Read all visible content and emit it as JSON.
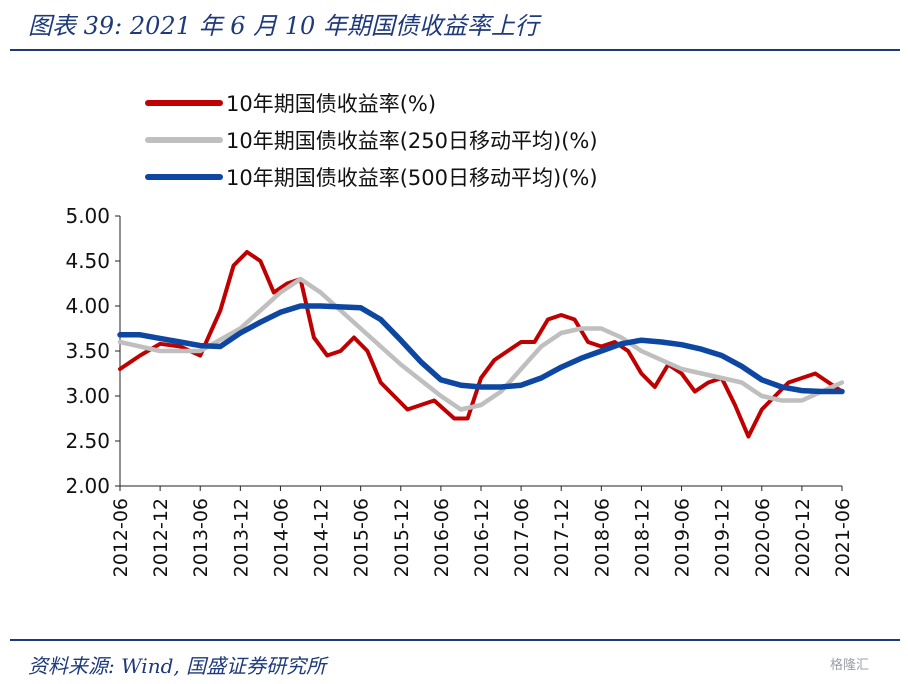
{
  "header": {
    "title": "图表 39:  2021 年 6 月 10 年期国债收益率上行"
  },
  "footer": {
    "source": "资料来源:  Wind,  国盛证券研究所",
    "watermark": "格隆汇"
  },
  "chart_data": {
    "type": "line",
    "ylim": [
      2.0,
      5.0
    ],
    "yticks": [
      "5.00",
      "4.50",
      "4.00",
      "3.50",
      "3.00",
      "2.50",
      "2.00"
    ],
    "xlim": [
      "2012-06",
      "2021-06"
    ],
    "xticks": [
      "2012-06",
      "2012-12",
      "2013-06",
      "2013-12",
      "2014-06",
      "2014-12",
      "2015-06",
      "2015-12",
      "2016-06",
      "2016-12",
      "2017-06",
      "2017-12",
      "2018-06",
      "2018-12",
      "2019-06",
      "2019-12",
      "2020-06",
      "2020-12",
      "2021-06"
    ],
    "grid": false,
    "legend_position": "top-left",
    "colors": {
      "yield": "#c00000",
      "ma250": "#bfbfbf",
      "ma500": "#0d47a1"
    },
    "series": [
      {
        "name": "10年期国债收益率(%)",
        "key": "yield",
        "x": [
          "2012-06",
          "2012-09",
          "2012-12",
          "2013-03",
          "2013-06",
          "2013-09",
          "2013-11",
          "2014-01",
          "2014-03",
          "2014-05",
          "2014-07",
          "2014-09",
          "2014-11",
          "2015-01",
          "2015-03",
          "2015-05",
          "2015-07",
          "2015-09",
          "2015-11",
          "2016-01",
          "2016-03",
          "2016-05",
          "2016-08",
          "2016-10",
          "2016-12",
          "2017-02",
          "2017-04",
          "2017-06",
          "2017-08",
          "2017-10",
          "2017-12",
          "2018-02",
          "2018-04",
          "2018-06",
          "2018-08",
          "2018-10",
          "2018-12",
          "2019-02",
          "2019-04",
          "2019-06",
          "2019-08",
          "2019-10",
          "2019-12",
          "2020-02",
          "2020-04",
          "2020-06",
          "2020-08",
          "2020-10",
          "2020-12",
          "2021-02",
          "2021-04",
          "2021-06"
        ],
        "values": [
          3.3,
          3.45,
          3.58,
          3.55,
          3.45,
          3.95,
          4.45,
          4.6,
          4.5,
          4.15,
          4.25,
          4.3,
          3.65,
          3.45,
          3.5,
          3.65,
          3.5,
          3.15,
          3.0,
          2.85,
          2.9,
          2.95,
          2.75,
          2.75,
          3.2,
          3.4,
          3.5,
          3.6,
          3.6,
          3.85,
          3.9,
          3.85,
          3.6,
          3.55,
          3.6,
          3.5,
          3.25,
          3.1,
          3.35,
          3.25,
          3.05,
          3.15,
          3.2,
          2.9,
          2.55,
          2.85,
          3.0,
          3.15,
          3.2,
          3.25,
          3.15,
          3.05
        ]
      },
      {
        "name": "10年期国债收益率(250日移动平均)(%)",
        "key": "ma250",
        "x": [
          "2012-06",
          "2012-12",
          "2013-06",
          "2013-12",
          "2014-06",
          "2014-09",
          "2014-12",
          "2015-06",
          "2015-12",
          "2016-06",
          "2016-09",
          "2016-12",
          "2017-03",
          "2017-06",
          "2017-09",
          "2017-12",
          "2018-03",
          "2018-06",
          "2018-09",
          "2018-12",
          "2019-06",
          "2019-12",
          "2020-03",
          "2020-06",
          "2020-09",
          "2020-12",
          "2021-03",
          "2021-06"
        ],
        "values": [
          3.6,
          3.5,
          3.5,
          3.75,
          4.15,
          4.3,
          4.15,
          3.75,
          3.35,
          3.0,
          2.85,
          2.9,
          3.05,
          3.3,
          3.55,
          3.7,
          3.75,
          3.75,
          3.65,
          3.5,
          3.3,
          3.2,
          3.15,
          3.0,
          2.95,
          2.95,
          3.05,
          3.15
        ]
      },
      {
        "name": "10年期国债收益率(500日移动平均)(%)",
        "key": "ma500",
        "x": [
          "2012-06",
          "2012-09",
          "2012-12",
          "2013-03",
          "2013-06",
          "2013-09",
          "2013-12",
          "2014-03",
          "2014-06",
          "2014-09",
          "2014-12",
          "2015-03",
          "2015-06",
          "2015-09",
          "2015-12",
          "2016-03",
          "2016-06",
          "2016-09",
          "2016-12",
          "2017-03",
          "2017-06",
          "2017-09",
          "2017-12",
          "2018-03",
          "2018-06",
          "2018-09",
          "2018-12",
          "2019-03",
          "2019-06",
          "2019-09",
          "2019-12",
          "2020-03",
          "2020-06",
          "2020-09",
          "2020-12",
          "2021-03",
          "2021-06"
        ],
        "values": [
          3.68,
          3.68,
          3.64,
          3.6,
          3.56,
          3.55,
          3.7,
          3.82,
          3.93,
          4.0,
          4.0,
          3.99,
          3.98,
          3.85,
          3.62,
          3.38,
          3.18,
          3.12,
          3.1,
          3.1,
          3.12,
          3.2,
          3.32,
          3.42,
          3.5,
          3.58,
          3.62,
          3.6,
          3.57,
          3.52,
          3.45,
          3.33,
          3.18,
          3.1,
          3.06,
          3.05,
          3.05
        ]
      }
    ]
  }
}
